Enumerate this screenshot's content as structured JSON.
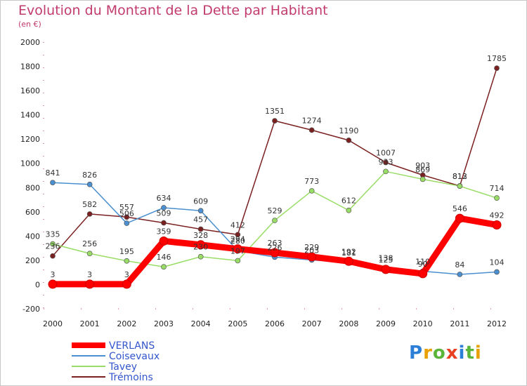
{
  "chart_data": {
    "type": "line",
    "title": "Evolution du Montant de la Dette par Habitant",
    "subtitle": "(en €)",
    "xlabel": "",
    "ylabel": "",
    "categories": [
      "2000",
      "2001",
      "2002",
      "2003",
      "2004",
      "2005",
      "2006",
      "2007",
      "2008",
      "2009",
      "2010",
      "2011",
      "2012"
    ],
    "ylim": [
      -200,
      2000
    ],
    "yticks": [
      -200,
      0,
      200,
      400,
      600,
      800,
      1000,
      1200,
      1400,
      1600,
      1800,
      2000
    ],
    "grid": false,
    "legend": "bottom-left",
    "series": [
      {
        "name": "VERLANS",
        "color": "#ff0000",
        "values": [
          3,
          3,
          3,
          359,
          328,
          294,
          263,
          229,
          192,
          125,
          90,
          546,
          492
        ]
      },
      {
        "name": "Coisevaux",
        "color": "#4a8fcf",
        "values": [
          841,
          826,
          506,
          634,
          609,
          280,
          226,
          203,
          181,
          138,
          110,
          84,
          104
        ]
      },
      {
        "name": "Tavey",
        "color": "#99dd66",
        "values": [
          335,
          256,
          195,
          146,
          230,
          197,
          529,
          773,
          612,
          933,
          869,
          812,
          714
        ]
      },
      {
        "name": "Trémoins",
        "color": "#7b2020",
        "values": [
          236,
          582,
          557,
          509,
          457,
          412,
          1351,
          1274,
          1190,
          1007,
          903,
          813,
          null
        ]
      },
      {
        "name": "",
        "color": "#7b2020",
        "values": [
          null,
          null,
          null,
          null,
          null,
          null,
          null,
          null,
          null,
          null,
          null,
          813,
          1785
        ]
      }
    ]
  },
  "logo": {
    "text": "Proxiti"
  }
}
